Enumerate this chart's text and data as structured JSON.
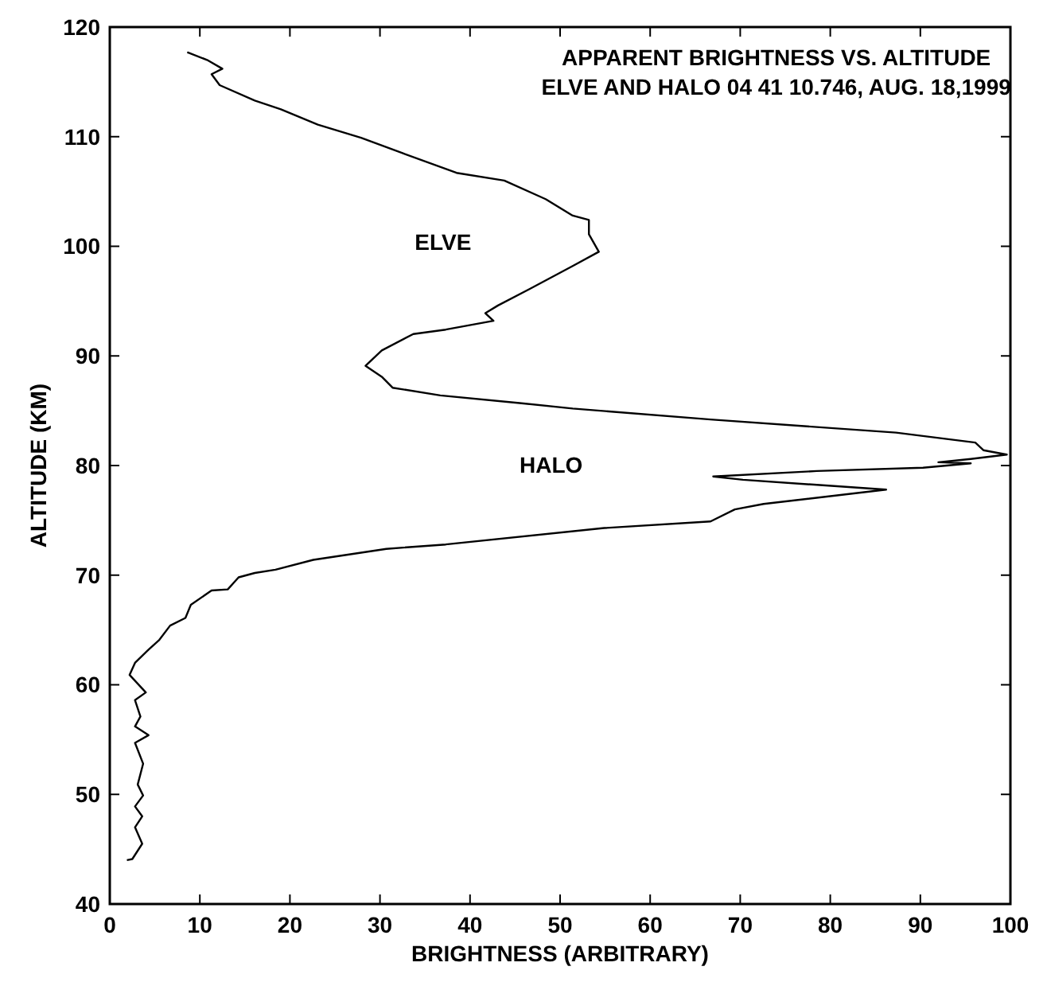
{
  "chart_data": {
    "type": "line",
    "title": "APPARENT BRIGHTNESS VS. ALTITUDE",
    "subtitle": "ELVE AND HALO 04 41 10.746, AUG. 18,1999",
    "xlabel": "BRIGHTNESS (ARBITRARY)",
    "ylabel": "ALTITUDE (KM)",
    "series": [
      {
        "color": "#000000",
        "x": [
          8.6,
          10.8,
          12.5,
          11.3,
          12.2,
          16.1,
          19,
          23.1,
          27.9,
          32.5,
          38.5,
          43.8,
          48.4,
          51.4,
          53.2,
          53.2,
          54.3,
          51.4,
          46.6,
          43.1,
          41.7,
          42.6,
          37.3,
          33.7,
          30.2,
          28.4,
          30.2,
          31.4,
          36.7,
          45.5,
          51.4,
          66.7,
          87.3,
          96.1,
          97,
          99.6,
          95.6,
          92,
          95.6,
          90.3,
          78.5,
          67,
          70.3,
          86.2,
          72.6,
          69.4,
          66.7,
          54.9,
          37.3,
          30.7,
          22.6,
          18.4,
          16.1,
          14.3,
          13.1,
          11.3,
          9,
          8.4,
          6.7,
          5.5,
          4.3,
          2.8,
          2.2,
          4,
          2.8,
          3.4,
          2.8,
          4.3,
          2.8,
          3.7,
          3.1,
          3.7,
          2.8,
          3.6,
          2.8,
          3.6,
          2.5,
          1.9
        ],
        "values": [
          117.7,
          117,
          116.2,
          115.7,
          114.7,
          113.3,
          112.5,
          111.1,
          109.9,
          108.5,
          106.7,
          106,
          104.3,
          102.8,
          102.4,
          101.1,
          99.5,
          98.2,
          96.1,
          94.6,
          93.9,
          93.2,
          92.4,
          92,
          90.5,
          89.1,
          88.1,
          87.1,
          86.4,
          85.7,
          85.2,
          84.2,
          83,
          82.1,
          81.4,
          81,
          80.6,
          80.3,
          80.2,
          79.8,
          79.5,
          79,
          78.7,
          77.8,
          76.5,
          76,
          74.9,
          74.3,
          72.8,
          72.4,
          71.4,
          70.5,
          70.2,
          69.8,
          68.7,
          68.6,
          67.3,
          66.1,
          65.4,
          64.1,
          63.2,
          62,
          60.9,
          59.3,
          58.6,
          57.1,
          56.2,
          55.4,
          54.7,
          52.8,
          50.9,
          49.9,
          48.9,
          48,
          47,
          45.5,
          44.1,
          44
        ]
      }
    ],
    "annotations": [
      "ELVE",
      "HALO"
    ],
    "xlim": [
      0,
      100
    ],
    "xticks": [
      0,
      10,
      20,
      30,
      40,
      50,
      60,
      70,
      80,
      90,
      100
    ],
    "ylim": [
      40,
      120
    ],
    "yticks": [
      40,
      50,
      60,
      70,
      80,
      90,
      100,
      110,
      120
    ],
    "marker": "none",
    "line_style": "solid"
  }
}
